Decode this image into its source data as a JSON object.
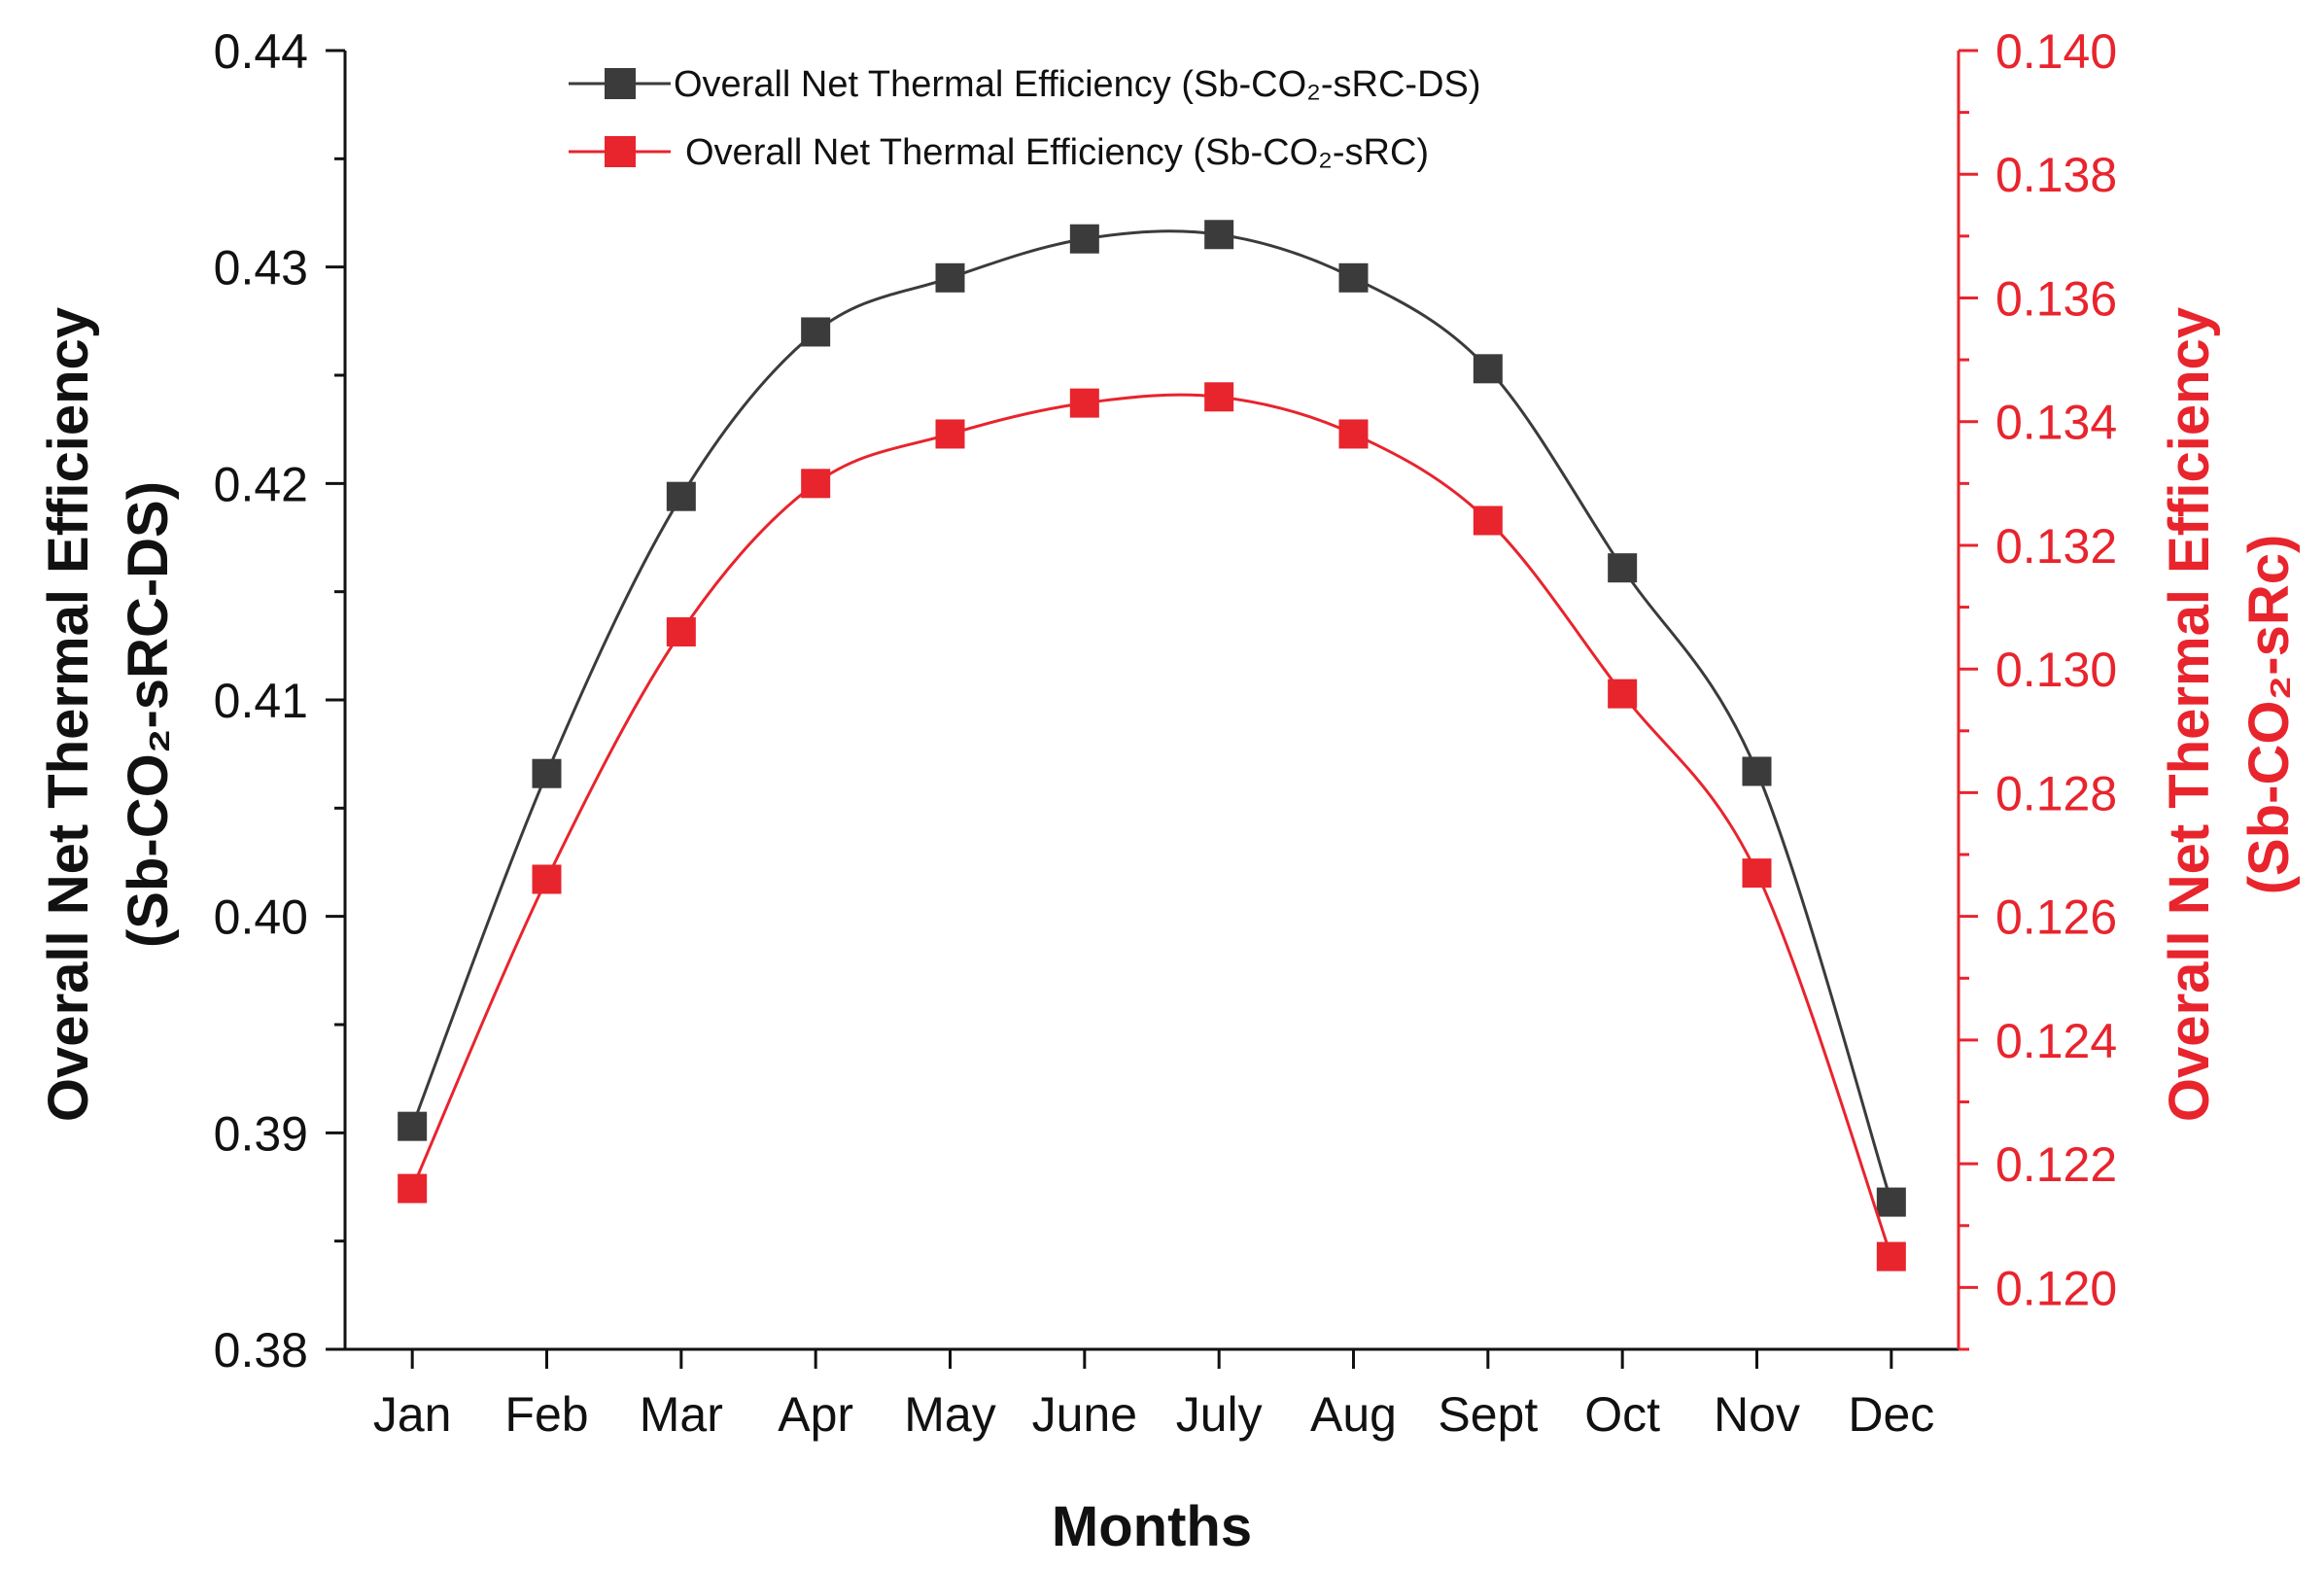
{
  "chart_data": {
    "type": "line",
    "title": "",
    "xlabel": "Months",
    "categories": [
      "Jan",
      "Feb",
      "Mar",
      "Apr",
      "May",
      "June",
      "July",
      "Aug",
      "Sept",
      "Oct",
      "Nov",
      "Dec"
    ],
    "y_left": {
      "label_line1": "Overall Net Thermal Efficiency",
      "label_line2": "(Sb-CO₂-sRC-DS)",
      "ylim": [
        0.38,
        0.44
      ],
      "ticks": [
        "0.38",
        "0.39",
        "0.40",
        "0.41",
        "0.42",
        "0.43",
        "0.44"
      ]
    },
    "y_right": {
      "label_line1": "Overall Net Thermal Efficiency",
      "label_line2": "(Sb-CO₂-sRc)",
      "ylim": [
        0.119,
        0.14
      ],
      "ticks": [
        "0.120",
        "0.122",
        "0.124",
        "0.126",
        "0.128",
        "0.130",
        "0.132",
        "0.134",
        "0.136",
        "0.138",
        "0.140"
      ]
    },
    "series": [
      {
        "name": "Overall Net Thermal Efficiency (Sb-CO₂-sRC-DS)",
        "axis": "left",
        "color": "#3b3b3b",
        "values": [
          0.3903,
          0.4066,
          0.4194,
          0.427,
          0.4295,
          0.4313,
          0.4315,
          0.4295,
          0.4253,
          0.4161,
          0.4067,
          0.3868
        ]
      },
      {
        "name": "Overall Net Thermal Efficiency (Sb-CO₂-sRC)",
        "axis": "right",
        "color": "#e8242d",
        "values": [
          0.1216,
          0.1266,
          0.1306,
          0.133,
          0.1338,
          0.1343,
          0.1344,
          0.1338,
          0.1324,
          0.1296,
          0.1267,
          0.1205
        ]
      }
    ],
    "legend_position": "top-center",
    "grid": false
  },
  "colors": {
    "right_axis": "#e8242d",
    "left_axis": "#111111"
  }
}
